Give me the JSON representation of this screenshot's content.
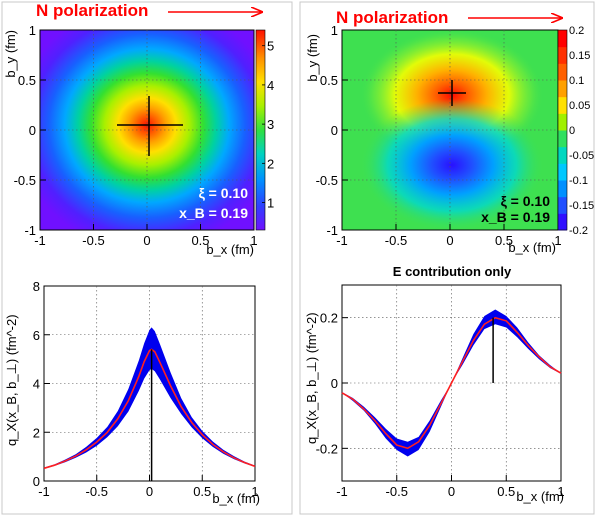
{
  "arrow_color": "#ff0000",
  "chart_data": [
    {
      "type": "heatmap",
      "title": "N polarization",
      "xlabel": "b_x (fm)",
      "ylabel": "b_y (fm)",
      "xlim": [
        -1,
        1
      ],
      "ylim": [
        -1,
        1
      ],
      "xticks": [
        -1,
        -0.5,
        0,
        0.5,
        1
      ],
      "xtick_labels": [
        "-1",
        "-0.5",
        "0",
        "0.5",
        "1"
      ],
      "yticks": [
        -1,
        -0.5,
        0,
        0.5,
        1
      ],
      "ytick_labels": [
        "-1",
        "-0.5",
        "0",
        "0.5",
        "1"
      ],
      "colorbar": {
        "min": 0.3,
        "max": 5.4,
        "ticks": [
          1,
          2,
          3,
          4,
          5
        ],
        "tick_labels": [
          "1",
          "2",
          "3",
          "4",
          "5"
        ]
      },
      "grid": true,
      "peak": {
        "bx": 0.0,
        "by": 0.05,
        "value": 5.4
      },
      "annotations": [
        "ξ = 0.10",
        "x_B = 0.19"
      ]
    },
    {
      "type": "heatmap",
      "title": "N polarization",
      "xlabel": "b_x (fm)",
      "ylabel": "b_y (fm)",
      "xlim": [
        -1,
        1
      ],
      "ylim": [
        -1,
        1
      ],
      "xticks": [
        -1,
        -0.5,
        0,
        0.5,
        1
      ],
      "xtick_labels": [
        "-1",
        "-0.5",
        "0",
        "0.5",
        "1"
      ],
      "yticks": [
        -1,
        -0.5,
        0,
        0.5,
        1
      ],
      "ytick_labels": [
        "-1",
        "-0.5",
        "0",
        "0.5",
        "1"
      ],
      "colorbar": {
        "min": -0.2,
        "max": 0.2,
        "ticks": [
          -0.2,
          -0.15,
          -0.1,
          -0.05,
          0,
          0.05,
          0.1,
          0.15,
          0.2
        ],
        "tick_labels": [
          "-0.2",
          "-0.15",
          "-0.1",
          "-0.05",
          "0",
          "0.05",
          "0.1",
          "0.15",
          "0.2"
        ]
      },
      "grid": true,
      "max": {
        "bx": 0.0,
        "by": 0.38,
        "value": 0.2
      },
      "min": {
        "bx": 0.0,
        "by": -0.38,
        "value": -0.2
      },
      "annotations": [
        "ξ = 0.10",
        "x_B = 0.19"
      ]
    },
    {
      "type": "line",
      "title": "",
      "xlabel": "b_x (fm)",
      "ylabel": "q_X(x_B, b_⊥) (fm^-2)",
      "xlim": [
        -1,
        1
      ],
      "ylim": [
        0,
        8
      ],
      "xticks": [
        -1,
        -0.5,
        0,
        0.5,
        1
      ],
      "xtick_labels": [
        "-1",
        "-0.5",
        "0",
        "0.5",
        "1"
      ],
      "yticks": [
        0,
        2,
        4,
        6,
        8
      ],
      "ytick_labels": [
        "0",
        "2",
        "4",
        "6",
        "8"
      ],
      "grid": true,
      "x": [
        -1,
        -0.9,
        -0.8,
        -0.7,
        -0.6,
        -0.5,
        -0.4,
        -0.3,
        -0.2,
        -0.1,
        -0.05,
        0,
        0.02,
        0.05,
        0.1,
        0.2,
        0.3,
        0.4,
        0.5,
        0.6,
        0.7,
        0.8,
        0.9,
        1
      ],
      "series": [
        {
          "values": [
            0.52,
            0.65,
            0.82,
            1.02,
            1.28,
            1.6,
            2.0,
            2.55,
            3.3,
            4.3,
            4.9,
            5.35,
            5.4,
            5.3,
            4.85,
            3.9,
            3.05,
            2.4,
            1.9,
            1.5,
            1.2,
            0.95,
            0.76,
            0.6
          ],
          "lower": [
            0.5,
            0.62,
            0.77,
            0.95,
            1.17,
            1.45,
            1.8,
            2.25,
            2.85,
            3.7,
            4.2,
            4.55,
            4.6,
            4.5,
            4.15,
            3.4,
            2.75,
            2.2,
            1.75,
            1.4,
            1.12,
            0.9,
            0.72,
            0.58
          ],
          "upper": [
            0.55,
            0.68,
            0.88,
            1.1,
            1.4,
            1.77,
            2.22,
            2.87,
            3.78,
            4.95,
            5.65,
            6.2,
            6.3,
            6.15,
            5.6,
            4.45,
            3.4,
            2.62,
            2.05,
            1.62,
            1.28,
            1.02,
            0.8,
            0.63
          ],
          "line_color": "#ff2020",
          "band_color": "#0000ee"
        }
      ],
      "marker": {
        "x": 0.02,
        "y_from": 0,
        "y_to": 5.4
      }
    },
    {
      "type": "line",
      "title": "E contribution only",
      "xlabel": "b_x (fm)",
      "ylabel": "q_X(x_B, b_⊥) (fm^-2)",
      "xlim": [
        -1,
        1
      ],
      "ylim": [
        -0.3,
        0.3
      ],
      "xticks": [
        -1,
        -0.5,
        0,
        0.5,
        1
      ],
      "xtick_labels": [
        "-1",
        "-0.5",
        "0",
        "0.5",
        "1"
      ],
      "yticks": [
        -0.2,
        0,
        0.2
      ],
      "ytick_labels": [
        "-0.2",
        "0",
        "0.2"
      ],
      "grid": true,
      "x": [
        -1,
        -0.9,
        -0.8,
        -0.7,
        -0.6,
        -0.5,
        -0.4,
        -0.3,
        -0.2,
        -0.1,
        0,
        0.1,
        0.2,
        0.3,
        0.4,
        0.5,
        0.6,
        0.7,
        0.8,
        0.9,
        1
      ],
      "series": [
        {
          "values": [
            -0.03,
            -0.05,
            -0.08,
            -0.115,
            -0.155,
            -0.19,
            -0.2,
            -0.18,
            -0.13,
            -0.065,
            0.0,
            0.065,
            0.13,
            0.18,
            0.2,
            0.19,
            0.155,
            0.115,
            0.08,
            0.05,
            0.03
          ],
          "lower": [
            -0.03,
            -0.055,
            -0.085,
            -0.125,
            -0.17,
            -0.205,
            -0.225,
            -0.205,
            -0.15,
            -0.075,
            0.0,
            0.055,
            0.115,
            0.165,
            0.18,
            0.17,
            0.14,
            0.105,
            0.073,
            0.046,
            0.028
          ],
          "upper": [
            -0.028,
            -0.046,
            -0.073,
            -0.105,
            -0.14,
            -0.17,
            -0.18,
            -0.165,
            -0.115,
            -0.055,
            0.0,
            0.075,
            0.15,
            0.205,
            0.225,
            0.205,
            0.17,
            0.125,
            0.085,
            0.055,
            0.03
          ],
          "line_color": "#ff2020",
          "band_color": "#0000ee"
        }
      ],
      "marker": {
        "x": 0.38,
        "y_from": 0,
        "y_to": 0.2
      }
    }
  ]
}
